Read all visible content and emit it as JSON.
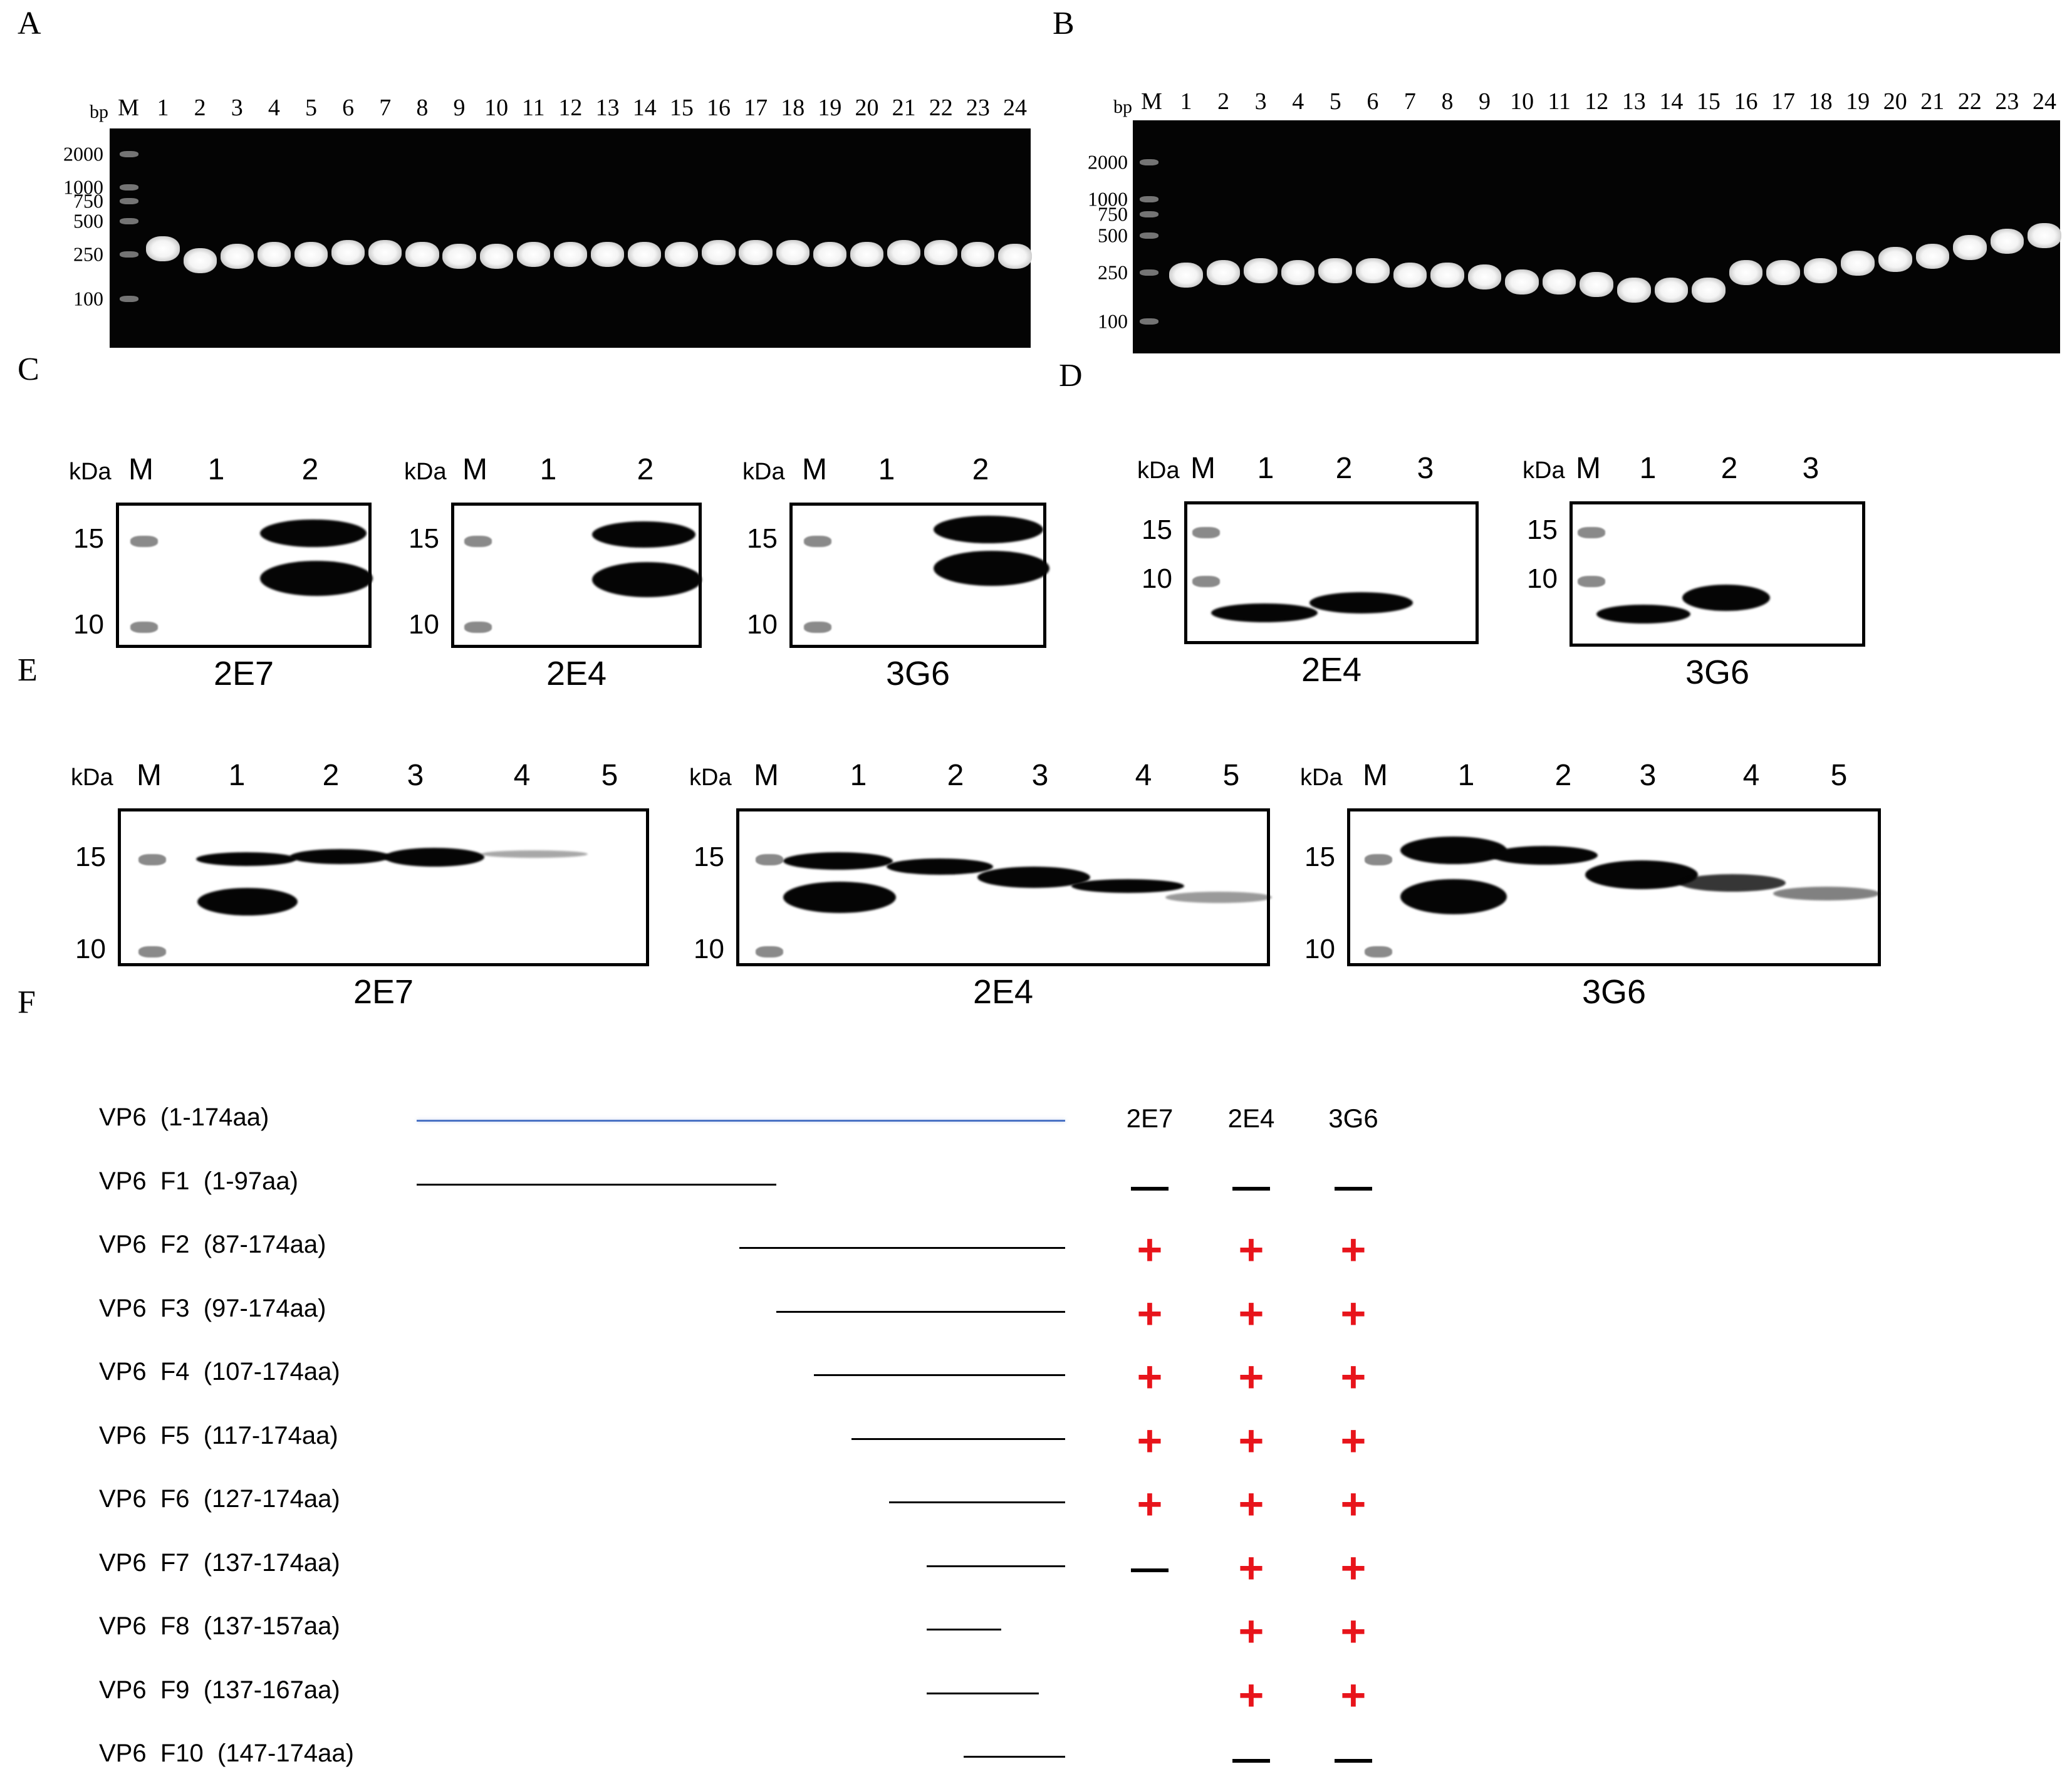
{
  "panels": {
    "A": "A",
    "B": "B",
    "C": "C",
    "D": "D",
    "E": "E",
    "F": "F"
  },
  "gel_A": {
    "unit": "bp",
    "marker": "M",
    "lanes": [
      "1",
      "2",
      "3",
      "4",
      "5",
      "6",
      "7",
      "8",
      "9",
      "10",
      "11",
      "12",
      "13",
      "14",
      "15",
      "16",
      "17",
      "18",
      "19",
      "20",
      "21",
      "22",
      "23",
      "24"
    ],
    "ladder": [
      "2000",
      "1000",
      "750",
      "500",
      "250",
      "100"
    ],
    "band_sizes_bp": [
      280,
      220,
      240,
      250,
      250,
      260,
      260,
      250,
      240,
      240,
      250,
      250,
      250,
      250,
      250,
      260,
      260,
      260,
      250,
      250,
      260,
      260,
      250,
      240
    ]
  },
  "gel_B": {
    "unit": "bp",
    "marker": "M",
    "lanes": [
      "1",
      "2",
      "3",
      "4",
      "5",
      "6",
      "7",
      "8",
      "9",
      "10",
      "11",
      "12",
      "13",
      "14",
      "15",
      "16",
      "17",
      "18",
      "19",
      "20",
      "21",
      "22",
      "23",
      "24"
    ],
    "ladder": [
      "2000",
      "1000",
      "750",
      "500",
      "250",
      "100"
    ],
    "band_sizes_bp": [
      240,
      250,
      260,
      250,
      260,
      260,
      240,
      240,
      230,
      210,
      210,
      200,
      180,
      180,
      180,
      250,
      250,
      260,
      300,
      320,
      340,
      400,
      450,
      500
    ]
  },
  "blot_C": {
    "kda": "kDa",
    "marker": "M",
    "lanes": [
      "1",
      "2"
    ],
    "ticks": [
      "15",
      "10"
    ],
    "blots": [
      {
        "name": "2E7"
      },
      {
        "name": "2E4"
      },
      {
        "name": "3G6"
      }
    ]
  },
  "blot_D": {
    "kda": "kDa",
    "marker": "M",
    "lanes": [
      "1",
      "2",
      "3"
    ],
    "ticks": [
      "15",
      "10"
    ],
    "blots": [
      {
        "name": "2E4"
      },
      {
        "name": "3G6"
      }
    ]
  },
  "blot_E": {
    "kda": "kDa",
    "marker": "M",
    "lanes": [
      "1",
      "2",
      "3",
      "4",
      "5"
    ],
    "ticks": [
      "15",
      "10"
    ],
    "blots": [
      {
        "name": "2E7"
      },
      {
        "name": "2E4"
      },
      {
        "name": "3G6"
      }
    ]
  },
  "epitope_map": {
    "antibodies": [
      "2E7",
      "2E4",
      "3G6"
    ],
    "full_length": 174,
    "rows": [
      {
        "label": "VP6  (1-174aa)",
        "start": 1,
        "end": 174,
        "full": true,
        "results": [
          "",
          "",
          ""
        ]
      },
      {
        "label": "VP6  F1  (1-97aa)",
        "start": 1,
        "end": 97,
        "results": [
          "-",
          "-",
          "-"
        ]
      },
      {
        "label": "VP6  F2  (87-174aa)",
        "start": 87,
        "end": 174,
        "results": [
          "+",
          "+",
          "+"
        ]
      },
      {
        "label": "VP6  F3  (97-174aa)",
        "start": 97,
        "end": 174,
        "results": [
          "+",
          "+",
          "+"
        ]
      },
      {
        "label": "VP6  F4  (107-174aa)",
        "start": 107,
        "end": 174,
        "results": [
          "+",
          "+",
          "+"
        ]
      },
      {
        "label": "VP6  F5  (117-174aa)",
        "start": 117,
        "end": 174,
        "results": [
          "+",
          "+",
          "+"
        ]
      },
      {
        "label": "VP6  F6  (127-174aa)",
        "start": 127,
        "end": 174,
        "results": [
          "+",
          "+",
          "+"
        ]
      },
      {
        "label": "VP6  F7  (137-174aa)",
        "start": 137,
        "end": 174,
        "results": [
          "-",
          "+",
          "+"
        ]
      },
      {
        "label": "VP6  F8  (137-157aa)",
        "start": 137,
        "end": 157,
        "results": [
          "",
          "+",
          "+"
        ]
      },
      {
        "label": "VP6  F9  (137-167aa)",
        "start": 137,
        "end": 167,
        "results": [
          "",
          "+",
          "+"
        ]
      },
      {
        "label": "VP6  F10  (147-174aa)",
        "start": 147,
        "end": 174,
        "results": [
          "",
          "-",
          "-"
        ]
      }
    ],
    "colors": {
      "positive": "#e8141b",
      "negative": "#000000",
      "full_line": "#4a72c4"
    }
  }
}
